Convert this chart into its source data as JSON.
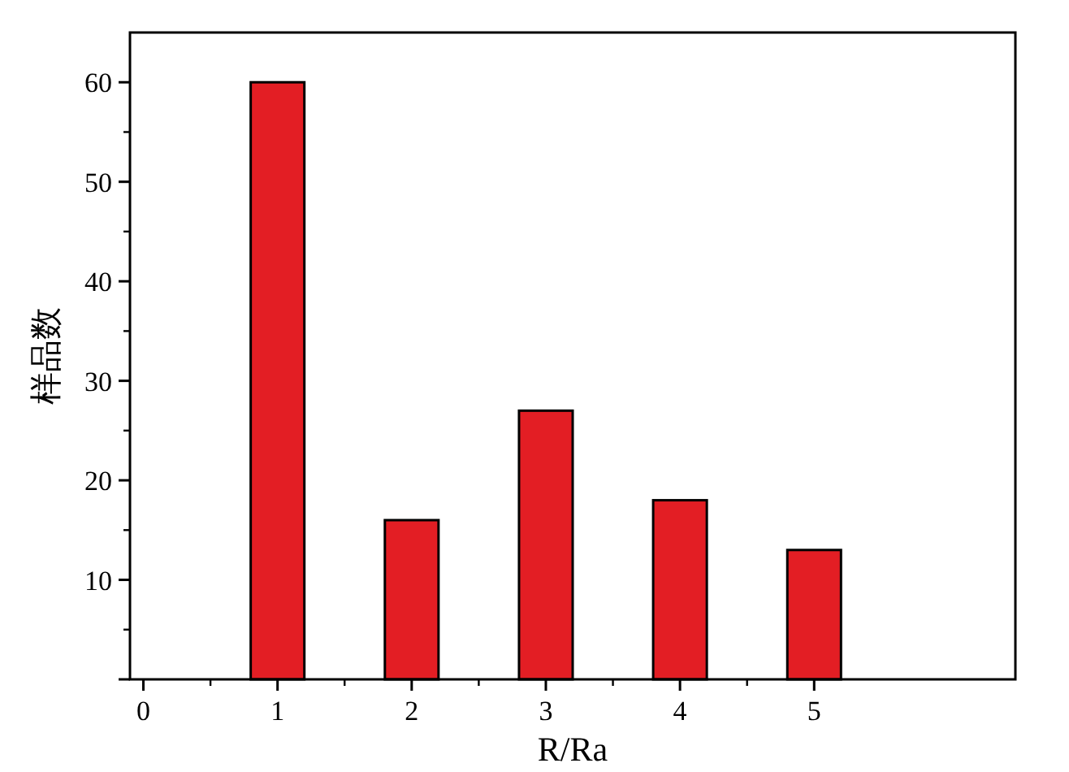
{
  "chart_data": {
    "type": "bar",
    "xlabel": "R/Ra",
    "ylabel": "样品数",
    "x": [
      1,
      2,
      3,
      4,
      5
    ],
    "values": [
      60,
      16,
      27,
      18,
      13
    ],
    "color": "#e31e24",
    "xlim": [
      -0.1,
      6.5
    ],
    "xticks": [
      0,
      1,
      2,
      3,
      4,
      5
    ],
    "ylim": [
      0,
      65
    ],
    "yticks": [
      {
        "value": 0,
        "label": null
      },
      10,
      20,
      30,
      40,
      50,
      60
    ],
    "grid": false
  }
}
